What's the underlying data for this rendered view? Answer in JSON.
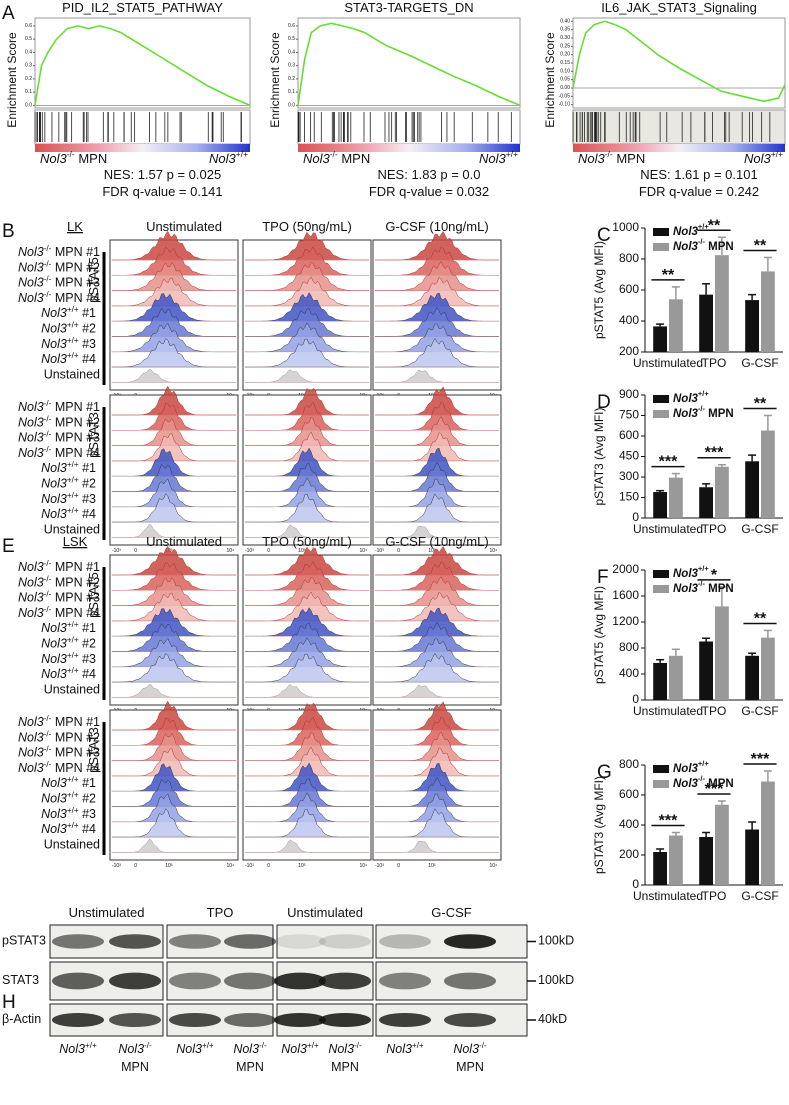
{
  "chart_data": [
    {
      "type": "line",
      "panel": "A",
      "title": "PID_IL2_STAT5_PATHWAY",
      "ylabel": "Enrichment Score",
      "color": "#66dd33",
      "x": [
        0,
        3,
        6,
        10,
        15,
        20,
        25,
        30,
        35,
        40,
        50,
        60,
        70,
        80,
        90,
        100
      ],
      "values": [
        0,
        0.3,
        0.4,
        0.5,
        0.58,
        0.6,
        0.58,
        0.6,
        0.58,
        0.55,
        0.45,
        0.35,
        0.25,
        0.15,
        0.07,
        0
      ],
      "xlim": [
        0,
        100
      ],
      "ylim": [
        -0.02,
        0.66
      ],
      "yticks": [
        {
          "value": 0,
          "label": "0.0"
        },
        0.1,
        0.2,
        0.3,
        0.4,
        0.5,
        0.6
      ],
      "annotations": {
        "left": "Nol3-/- MPN",
        "right": "Nol3+/+",
        "nes": "NES: 1.57 p = 0.025",
        "fdr": "FDR q-value = 0.141"
      }
    },
    {
      "type": "line",
      "title": "STAT3-TARGETS_DN",
      "ylabel": "Enrichment Score",
      "color": "#66dd33",
      "x": [
        0,
        3,
        6,
        10,
        15,
        20,
        25,
        30,
        35,
        40,
        50,
        60,
        70,
        80,
        90,
        100
      ],
      "values": [
        0,
        0.35,
        0.55,
        0.6,
        0.62,
        0.6,
        0.58,
        0.55,
        0.5,
        0.45,
        0.38,
        0.3,
        0.22,
        0.15,
        0.07,
        0
      ],
      "xlim": [
        0,
        100
      ],
      "ylim": [
        -0.02,
        0.66
      ],
      "yticks": [
        {
          "value": 0,
          "label": "0.0"
        },
        0.1,
        0.2,
        0.3,
        0.4,
        0.5,
        0.6
      ],
      "annotations": {
        "left": "Nol3-/- MPN",
        "right": "Nol3+/+",
        "nes": "NES: 1.83 p = 0.0",
        "fdr": "FDR q-value = 0.032"
      }
    },
    {
      "type": "line",
      "title": "IL6_JAK_STAT3_Signaling",
      "ylabel": "Enrichment Score",
      "color": "#66dd33",
      "x": [
        0,
        3,
        6,
        10,
        15,
        20,
        25,
        30,
        35,
        40,
        50,
        60,
        70,
        80,
        90,
        97,
        100
      ],
      "values": [
        0,
        0.2,
        0.33,
        0.38,
        0.4,
        0.38,
        0.35,
        0.3,
        0.25,
        0.2,
        0.12,
        0.05,
        -0.02,
        -0.05,
        -0.08,
        -0.06,
        0.02
      ],
      "xlim": [
        0,
        100
      ],
      "ylim": [
        -0.12,
        0.42
      ],
      "yticks": [
        {
          "value": 0.4,
          "label": "0.40"
        },
        0.35,
        {
          "value": 0.3,
          "label": "0.30"
        },
        0.25,
        {
          "value": 0.2,
          "label": "0.20"
        },
        0.15,
        {
          "value": 0.1,
          "label": "0.10"
        },
        0.05,
        {
          "value": 0,
          "label": "0.00"
        },
        -0.05,
        {
          "value": -0.1,
          "label": "-0.10"
        }
      ],
      "annotations": {
        "left": "Nol3-/- MPN",
        "right": "Nol3+/+",
        "nes": "NES: 1.61 p = 0.101",
        "fdr": "FDR q-value = 0.242"
      }
    },
    {
      "type": "bar",
      "panel": "C",
      "ylabel": "pSTAT5 (Avg MFI)",
      "categories": [
        "Unstimulated",
        "TPO",
        "G-CSF"
      ],
      "series": [
        {
          "name": "Nol3+/+",
          "color": "#111111",
          "values": [
            365,
            570,
            535
          ],
          "errors": [
            15,
            70,
            35
          ]
        },
        {
          "name": "Nol3-/- MPN",
          "color": "#999999",
          "values": [
            540,
            825,
            720
          ],
          "errors": [
            80,
            115,
            90
          ]
        }
      ],
      "ylim": [
        200,
        1000
      ],
      "yticks": [
        200,
        400,
        600,
        800,
        1000
      ],
      "significance": [
        "**",
        "**",
        "**"
      ],
      "legend": "upper left"
    },
    {
      "type": "bar",
      "panel": "D",
      "ylabel": "pSTAT3 (Avg MFI)",
      "categories": [
        "Unstimulated",
        "TPO",
        "G-CSF"
      ],
      "series": [
        {
          "name": "Nol3+/+",
          "color": "#111111",
          "values": [
            190,
            225,
            415
          ],
          "errors": [
            10,
            25,
            45
          ]
        },
        {
          "name": "Nol3-/- MPN",
          "color": "#999999",
          "values": [
            295,
            375,
            640
          ],
          "errors": [
            30,
            15,
            110
          ]
        }
      ],
      "ylim": [
        0,
        900
      ],
      "yticks": [
        0,
        150,
        300,
        450,
        600,
        750,
        900
      ],
      "significance": [
        "***",
        "***",
        "**"
      ],
      "legend": "upper left"
    },
    {
      "type": "bar",
      "panel": "F",
      "ylabel": "pSTAT5 (Avg MFI)",
      "categories": [
        "Unstimulated",
        "TPO",
        "G-CSF"
      ],
      "series": [
        {
          "name": "Nol3+/+",
          "color": "#111111",
          "values": [
            570,
            900,
            680
          ],
          "errors": [
            50,
            50,
            40
          ]
        },
        {
          "name": "Nol3-/- MPN",
          "color": "#999999",
          "values": [
            680,
            1440,
            960
          ],
          "errors": [
            100,
            300,
            110
          ]
        }
      ],
      "ylim": [
        0,
        2000
      ],
      "yticks": [
        0,
        400,
        800,
        1200,
        1600,
        2000
      ],
      "significance": [
        null,
        "*",
        "**"
      ],
      "legend": "upper left"
    },
    {
      "type": "bar",
      "panel": "G",
      "ylabel": "pSTAT3 (Avg MFI)",
      "categories": [
        "Unstimulated",
        "TPO",
        "G-CSF"
      ],
      "series": [
        {
          "name": "Nol3+/+",
          "color": "#111111",
          "values": [
            220,
            320,
            370
          ],
          "errors": [
            20,
            30,
            50
          ]
        },
        {
          "name": "Nol3-/- MPN",
          "color": "#999999",
          "values": [
            330,
            535,
            690
          ],
          "errors": [
            20,
            25,
            70
          ]
        }
      ],
      "ylim": [
        0,
        800
      ],
      "yticks": [
        0,
        200,
        400,
        600,
        800
      ],
      "significance": [
        "***",
        "***",
        "***"
      ],
      "legend": "upper left"
    }
  ],
  "flow": [
    {
      "label": "B",
      "population": "LK",
      "columns": [
        "Unstimulated",
        "TPO (50ng/mL)",
        "G-CSF (10ng/mL)"
      ],
      "stains": [
        "pSTAT5",
        "pSTAT3"
      ],
      "rows": [
        "Nol3-/- MPN #1",
        "Nol3-/- MPN #2",
        "Nol3-/- MPN #3",
        "Nol3-/- MPN #4",
        "Nol3+/+ #1",
        "Nol3+/+ #2",
        "Nol3+/+ #3",
        "Nol3+/+ #4",
        "Unstained"
      ],
      "axis_labels": [
        "-10³",
        "0",
        "10³",
        "10⁴"
      ]
    },
    {
      "label": "E",
      "population": "LSK",
      "columns": [
        "Unstimulated",
        "TPO (50ng/mL)",
        "G-CSF (10ng/mL)"
      ],
      "stains": [
        "pSTAT5",
        "pSTAT3"
      ],
      "rows": [
        "Nol3-/- MPN #1",
        "Nol3-/- MPN #2",
        "Nol3-/- MPN #3",
        "Nol3-/- MPN #4",
        "Nol3+/+ #1",
        "Nol3+/+ #2",
        "Nol3+/+ #3",
        "Nol3+/+ #4",
        "Unstained"
      ],
      "axis_labels": [
        "-10³",
        "0",
        "10³",
        "10⁴"
      ]
    }
  ],
  "western": {
    "label": "H",
    "groups": [
      "Unstimulated",
      "TPO",
      "Unstimulated",
      "G-CSF"
    ],
    "rows": [
      "pSTAT3",
      "STAT3",
      "β-Actin"
    ],
    "markers": [
      "100kD",
      "100kD",
      "40kD"
    ],
    "lanes": [
      {
        "genotype": "Nol3+/+"
      },
      {
        "genotype": "Nol3-/-",
        "detail": "MPN"
      },
      {
        "genotype": "Nol3+/+"
      },
      {
        "genotype": "Nol3-/-",
        "detail": "MPN"
      },
      {
        "genotype": "Nol3+/+"
      },
      {
        "genotype": "Nol3-/-",
        "detail": "MPN"
      },
      {
        "genotype": "Nol3+/+"
      },
      {
        "genotype": "Nol3-/-",
        "detail": "MPN"
      }
    ]
  }
}
